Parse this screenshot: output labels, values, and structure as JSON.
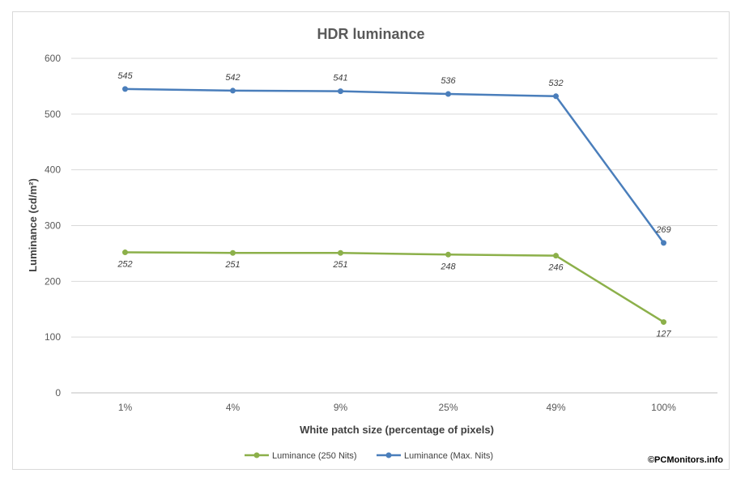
{
  "chart_data": {
    "type": "line",
    "title": "HDR luminance",
    "xlabel": "White patch size (percentage of pixels)",
    "ylabel": "Luminance (cd/m²)",
    "categories": [
      "1%",
      "4%",
      "9%",
      "25%",
      "49%",
      "100%"
    ],
    "ylim": [
      0,
      600
    ],
    "yticks": [
      0,
      100,
      200,
      300,
      400,
      500,
      600
    ],
    "grid": true,
    "legend_position": "bottom",
    "series": [
      {
        "name": "Luminance (250 Nits)",
        "color": "#8cb04a",
        "values": [
          252,
          251,
          251,
          248,
          246,
          127
        ],
        "labels": [
          "252",
          "251",
          "251",
          "248",
          "246",
          "127"
        ]
      },
      {
        "name": "Luminance (Max. Nits)",
        "color": "#4a7ebb",
        "values": [
          545,
          542,
          541,
          536,
          532,
          269
        ],
        "labels": [
          "545",
          "542",
          "541",
          "536",
          "532",
          "269"
        ]
      }
    ]
  },
  "credit": "©PCMonitors.info"
}
